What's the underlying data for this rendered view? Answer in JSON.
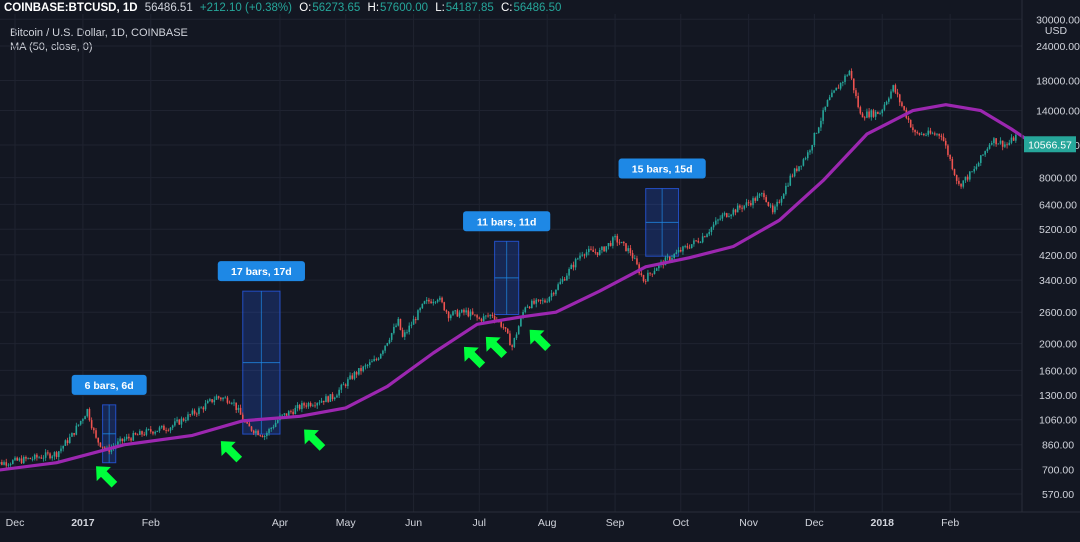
{
  "header": {
    "symbol": "COINBASE:BTCUSD, 1D",
    "last": "56486.51",
    "change": "+212.10 (+0.38%)",
    "o_label": "O:",
    "o": "56273.65",
    "h_label": "H:",
    "h": "57600.00",
    "l_label": "L:",
    "l": "54187.85",
    "c_label": "C:",
    "c": "56486.50"
  },
  "subtitle": "Bitcoin / U.S. Dollar, 1D, COINBASE",
  "indicator_label": "MA (50, close, 0)",
  "colors": {
    "background": "#131722",
    "up": "#26a69a",
    "down": "#ef5350",
    "ma": "#9c27b0",
    "range_box": "#2962ff",
    "label_bg": "#1e88e5",
    "arrow": "#00ff3c"
  },
  "chart_data": {
    "type": "candlestick",
    "y_scale": "log",
    "y_unit": "USD",
    "y_ticks": [
      "30000.00",
      "24000.00",
      "18000.00",
      "14000.00",
      "10500.00",
      "8000.00",
      "6400.00",
      "5200.00",
      "4200.00",
      "3400.00",
      "2600.00",
      "2000.00",
      "1600.00",
      "1300.00",
      "1060.00",
      "860.00",
      "700.00",
      "570.00"
    ],
    "x_ticks": [
      {
        "label": "Dec",
        "bold": false
      },
      {
        "label": "2017",
        "bold": true
      },
      {
        "label": "Feb",
        "bold": false
      },
      {
        "label": "Apr",
        "bold": false
      },
      {
        "label": "May",
        "bold": false
      },
      {
        "label": "Jun",
        "bold": false
      },
      {
        "label": "Jul",
        "bold": false
      },
      {
        "label": "Aug",
        "bold": false
      },
      {
        "label": "Sep",
        "bold": false
      },
      {
        "label": "Oct",
        "bold": false
      },
      {
        "label": "Nov",
        "bold": false
      },
      {
        "label": "Dec",
        "bold": false
      },
      {
        "label": "2018",
        "bold": true
      },
      {
        "label": "Feb",
        "bold": false
      }
    ],
    "last_price_label": "10566.57",
    "price_path": [
      [
        "2016-11-20",
        730
      ],
      [
        "2016-12-01",
        750
      ],
      [
        "2016-12-10",
        770
      ],
      [
        "2016-12-20",
        800
      ],
      [
        "2016-12-27",
        930
      ],
      [
        "2017-01-03",
        1150
      ],
      [
        "2017-01-07",
        900
      ],
      [
        "2017-01-12",
        820
      ],
      [
        "2017-01-20",
        900
      ],
      [
        "2017-01-31",
        960
      ],
      [
        "2017-02-10",
        1000
      ],
      [
        "2017-02-23",
        1150
      ],
      [
        "2017-03-03",
        1280
      ],
      [
        "2017-03-10",
        1250
      ],
      [
        "2017-03-17",
        1000
      ],
      [
        "2017-03-25",
        930
      ],
      [
        "2017-04-01",
        1080
      ],
      [
        "2017-04-12",
        1200
      ],
      [
        "2017-04-25",
        1280
      ],
      [
        "2017-05-05",
        1550
      ],
      [
        "2017-05-15",
        1750
      ],
      [
        "2017-05-25",
        2400
      ],
      [
        "2017-05-27",
        2100
      ],
      [
        "2017-06-06",
        2800
      ],
      [
        "2017-06-12",
        2950
      ],
      [
        "2017-06-17",
        2550
      ],
      [
        "2017-06-25",
        2600
      ],
      [
        "2017-07-01",
        2450
      ],
      [
        "2017-07-07",
        2550
      ],
      [
        "2017-07-12",
        2300
      ],
      [
        "2017-07-16",
        1950
      ],
      [
        "2017-07-22",
        2750
      ],
      [
        "2017-07-31",
        2850
      ],
      [
        "2017-08-08",
        3400
      ],
      [
        "2017-08-17",
        4300
      ],
      [
        "2017-08-25",
        4300
      ],
      [
        "2017-09-01",
        4800
      ],
      [
        "2017-09-08",
        4300
      ],
      [
        "2017-09-14",
        3400
      ],
      [
        "2017-09-20",
        3800
      ],
      [
        "2017-09-30",
        4300
      ],
      [
        "2017-10-10",
        4800
      ],
      [
        "2017-10-20",
        5800
      ],
      [
        "2017-10-31",
        6400
      ],
      [
        "2017-11-08",
        7000
      ],
      [
        "2017-11-12",
        5900
      ],
      [
        "2017-11-20",
        8000
      ],
      [
        "2017-11-28",
        9800
      ],
      [
        "2017-12-07",
        15000
      ],
      [
        "2017-12-17",
        19500
      ],
      [
        "2017-12-22",
        13500
      ],
      [
        "2017-12-31",
        13800
      ],
      [
        "2018-01-06",
        17000
      ],
      [
        "2018-01-16",
        11500
      ],
      [
        "2018-01-28",
        11500
      ],
      [
        "2018-02-05",
        7500
      ],
      [
        "2018-02-12",
        8500
      ],
      [
        "2018-02-20",
        11000
      ],
      [
        "2018-02-27",
        10500
      ],
      [
        "2018-03-04",
        11500
      ],
      [
        "2018-03-08",
        10566
      ]
    ],
    "ma50_path": [
      [
        "2016-11-20",
        690
      ],
      [
        "2016-12-20",
        740
      ],
      [
        "2017-01-20",
        860
      ],
      [
        "2017-02-20",
        930
      ],
      [
        "2017-03-15",
        1050
      ],
      [
        "2017-04-10",
        1090
      ],
      [
        "2017-05-01",
        1170
      ],
      [
        "2017-05-20",
        1400
      ],
      [
        "2017-06-10",
        1850
      ],
      [
        "2017-06-30",
        2350
      ],
      [
        "2017-07-20",
        2500
      ],
      [
        "2017-08-05",
        2600
      ],
      [
        "2017-08-25",
        3100
      ],
      [
        "2017-09-15",
        3800
      ],
      [
        "2017-10-05",
        4100
      ],
      [
        "2017-10-25",
        4500
      ],
      [
        "2017-11-15",
        5600
      ],
      [
        "2017-12-05",
        7800
      ],
      [
        "2017-12-25",
        11500
      ],
      [
        "2018-01-15",
        14000
      ],
      [
        "2018-01-30",
        14700
      ],
      [
        "2018-02-15",
        14000
      ],
      [
        "2018-03-01",
        12000
      ],
      [
        "2018-03-08",
        11000
      ]
    ],
    "bars_annotations": [
      {
        "label": "6 bars, 6d",
        "start": "2017-01-10",
        "end": "2017-01-16",
        "high": 1200,
        "low": 740
      },
      {
        "label": "17 bars, 17d",
        "start": "2017-03-15",
        "end": "2017-04-01",
        "high": 3100,
        "low": 940
      },
      {
        "label": "11 bars, 11d",
        "start": "2017-07-08",
        "end": "2017-07-19",
        "high": 4700,
        "low": 2550
      },
      {
        "label": "15 bars, 15d",
        "start": "2017-09-15",
        "end": "2017-09-30",
        "high": 7300,
        "low": 4150
      }
    ],
    "ma_touch_arrows": [
      "2017-01-07",
      "2017-03-05",
      "2017-04-12",
      "2017-06-24",
      "2017-07-04",
      "2017-07-24"
    ]
  }
}
